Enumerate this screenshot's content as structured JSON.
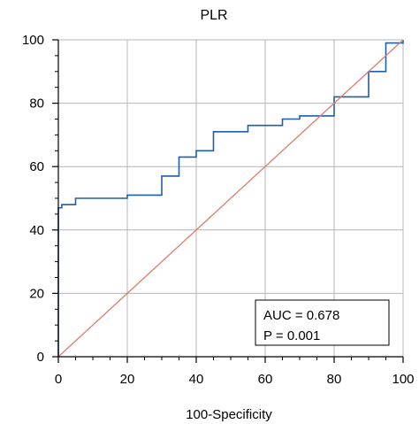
{
  "chart_data": {
    "type": "line",
    "title": "PLR",
    "xlabel": "100-Specificity",
    "ylabel": "",
    "xlim": [
      0,
      100
    ],
    "ylim": [
      0,
      100
    ],
    "x_ticks": [
      0,
      20,
      40,
      60,
      80,
      100
    ],
    "y_ticks": [
      0,
      20,
      40,
      60,
      80,
      100
    ],
    "grid": true,
    "legend": "none",
    "series": [
      {
        "color": "#1f5fa8",
        "step": true,
        "x": [
          0,
          0,
          1,
          1,
          5,
          5,
          20,
          20,
          30,
          30,
          35,
          35,
          40,
          40,
          45,
          45,
          55,
          55,
          65,
          65,
          70,
          70,
          80,
          80,
          90,
          90,
          95,
          95,
          100,
          100
        ],
        "y": [
          0,
          47,
          47,
          48,
          48,
          50,
          50,
          51,
          51,
          57,
          57,
          63,
          63,
          65,
          65,
          71,
          71,
          73,
          73,
          75,
          75,
          76,
          76,
          82,
          82,
          90,
          90,
          99,
          99,
          100
        ]
      },
      {
        "color": "#e07a6a",
        "step": false,
        "x": [
          0,
          100
        ],
        "y": [
          0,
          100
        ]
      }
    ],
    "annotation": {
      "lines": [
        "AUC  =  0.678",
        "P = 0.001"
      ]
    }
  }
}
